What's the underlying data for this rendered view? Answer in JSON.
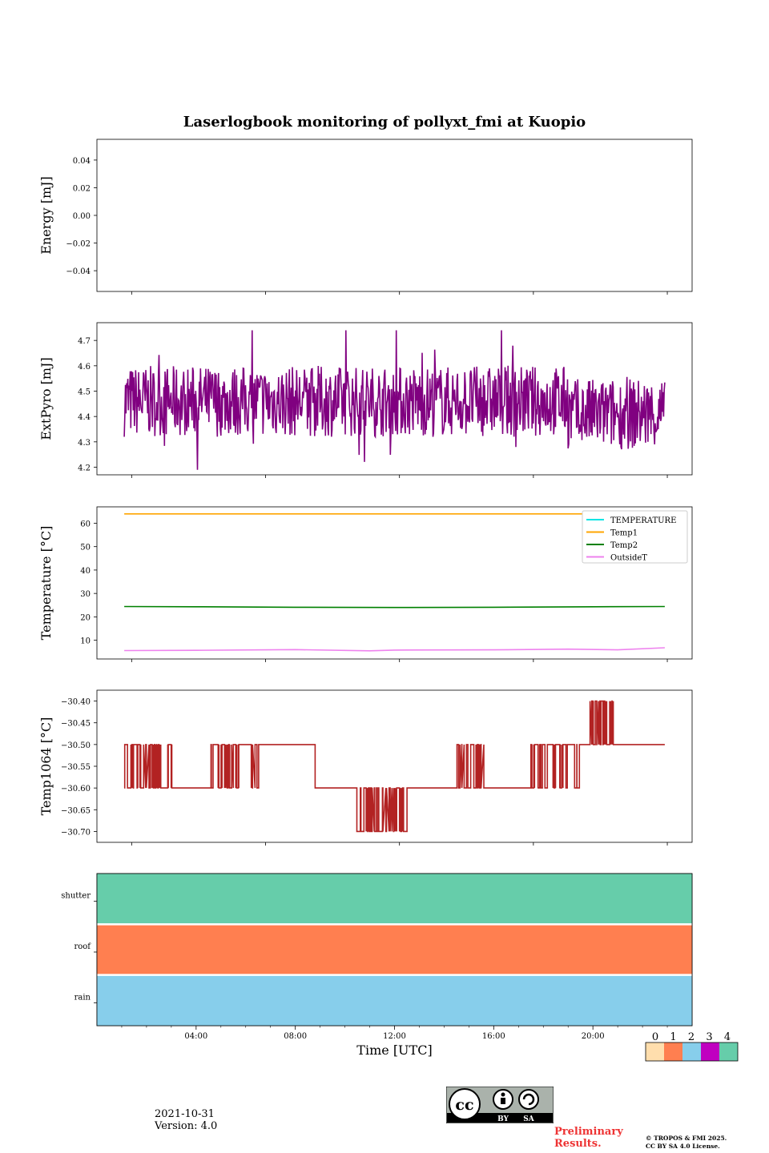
{
  "title": "Laserlogbook monitoring of pollyxt_fmi at Kuopio",
  "chart_data": [
    {
      "type": "line",
      "ylabel": "Energy [mJ]",
      "ylim": [
        -0.055,
        0.055
      ],
      "yticks": [
        0.04,
        0.02,
        0.0,
        -0.02,
        -0.04
      ],
      "ytick_labels": [
        "0.04",
        "0.02",
        "0.00",
        "−0.02",
        "−0.04"
      ],
      "series": []
    },
    {
      "type": "line",
      "ylabel": "ExtPyro [mJ]",
      "ylim": [
        4.17,
        4.77
      ],
      "yticks": [
        4.7,
        4.6,
        4.5,
        4.4,
        4.3,
        4.2
      ],
      "ytick_labels": [
        "4.7",
        "4.6",
        "4.5",
        "4.4",
        "4.3",
        "4.2"
      ],
      "series": [
        {
          "name": "ExtPyro",
          "color": "#800080",
          "mean": 4.46,
          "noise_min": 4.19,
          "noise_max": 4.74,
          "x_start_h": 1.1,
          "x_end_h": 22.9
        }
      ]
    },
    {
      "type": "line",
      "ylabel": "Temperature [°C]",
      "ylim": [
        2.0,
        67.0
      ],
      "yticks": [
        60,
        50,
        40,
        30,
        20,
        10
      ],
      "ytick_labels": [
        "60",
        "50",
        "40",
        "30",
        "20",
        "10"
      ],
      "legend": {
        "location": "top-right",
        "entries": [
          {
            "label": "TEMPERATURE",
            "color": "#00e5e5"
          },
          {
            "label": "Temp1",
            "color": "#ffa500"
          },
          {
            "label": "Temp2",
            "color": "#008000"
          },
          {
            "label": "OutsideT",
            "color": "#ee82ee"
          }
        ]
      },
      "series": [
        {
          "name": "Temp1",
          "color": "#ffa500",
          "x": [
            1.1,
            22.9
          ],
          "values": [
            64.0,
            64.0
          ]
        },
        {
          "name": "Temp2",
          "color": "#008000",
          "x": [
            1.1,
            4,
            8,
            12,
            16,
            20,
            22.9
          ],
          "values": [
            24.4,
            24.3,
            24.1,
            24.0,
            24.1,
            24.3,
            24.4
          ]
        },
        {
          "name": "OutsideT",
          "color": "#ee82ee",
          "x": [
            1.1,
            4,
            8,
            11,
            12,
            16,
            19,
            21,
            22.9
          ],
          "values": [
            5.6,
            5.7,
            6.0,
            5.5,
            5.8,
            5.9,
            6.2,
            5.9,
            6.8
          ]
        }
      ]
    },
    {
      "type": "line",
      "ylabel": "Temp1064 [°C]",
      "ylim": [
        -30.725,
        -30.375
      ],
      "yticks": [
        -30.4,
        -30.45,
        -30.5,
        -30.55,
        -30.6,
        -30.65,
        -30.7
      ],
      "ytick_labels": [
        "−30.40",
        "−30.45",
        "−30.50",
        "−30.55",
        "−30.60",
        "−30.65",
        "−30.70"
      ],
      "series": [
        {
          "name": "Temp1064",
          "color": "#b22222",
          "segments": [
            {
              "x0": 1.1,
              "x1": 4.6,
              "level": -30.6,
              "toggle": -30.5,
              "toggles": 22,
              "toggle_until": 2.9
            },
            {
              "x0": 4.6,
              "x1": 8.8,
              "level": -30.5,
              "toggle": -30.6,
              "toggles": 14,
              "toggle_until": 6.6
            },
            {
              "x0": 8.8,
              "x1": 14.4,
              "level": -30.6,
              "toggle": -30.7,
              "toggles": 20,
              "toggle_from": 10.2,
              "toggle_until": 12.5
            },
            {
              "x0": 14.4,
              "x1": 17.5,
              "level": -30.6,
              "toggle": -30.5,
              "toggles": 10,
              "toggle_from": 14.4,
              "toggle_until": 15.5
            },
            {
              "x0": 17.5,
              "x1": 19.8,
              "level": -30.5,
              "toggle": -30.6,
              "toggles": 14,
              "toggle_until": 19.4
            },
            {
              "x0": 19.8,
              "x1": 20.8,
              "level": -30.5,
              "toggle": -30.4,
              "toggles": 12
            },
            {
              "x0": 20.8,
              "x1": 22.9,
              "level": -30.5,
              "toggles": 0
            }
          ]
        }
      ]
    },
    {
      "type": "heatmap",
      "xlabel": "Time [UTC]",
      "xlim_h": [
        0,
        24
      ],
      "xtick_labels": [
        "04:00",
        "08:00",
        "12:00",
        "16:00",
        "20:00"
      ],
      "rows": [
        {
          "label": "shutter",
          "status": 4
        },
        {
          "label": "roof",
          "status": 1
        },
        {
          "label": "rain",
          "status": 2
        }
      ],
      "colorbar": {
        "ticks": [
          "0",
          "1",
          "2",
          "3",
          "4"
        ],
        "colors": [
          "#ffdead",
          "#ff7f50",
          "#87ceeb",
          "#c000c0",
          "#66cdaa"
        ]
      }
    }
  ],
  "footer": {
    "date": "2021-10-31",
    "version": "Version: 4.0",
    "preliminary_line1": "Preliminary",
    "preliminary_line2": "Results.",
    "copyright_line1": "© TROPOS & FMI 2025.",
    "copyright_line2": "CC BY SA 4.0 License."
  },
  "cc_logo": {
    "text": "cc",
    "by": "BY",
    "sa": "SA"
  }
}
